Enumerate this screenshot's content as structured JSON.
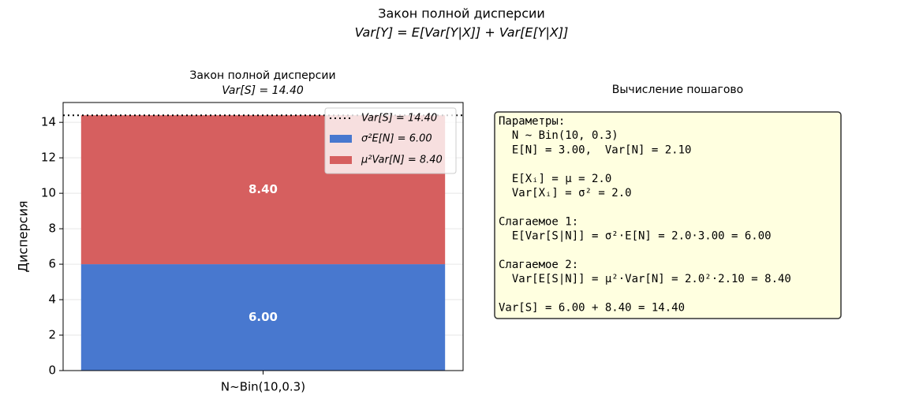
{
  "chart_data": {
    "type": "stacked-bar",
    "title": "Закон полной дисперсии",
    "formula": "Var[Y] = E[Var[Y|X]] + Var[E[Y|X]]",
    "axes_title": "Закон полной дисперсии",
    "axes_subtitle": "Var[S] = 14.40",
    "ylabel": "Дисперсия",
    "categories": [
      "N~Bin(10,0.3)"
    ],
    "series": [
      {
        "name": "σ²E[N] = 6.00",
        "color": "#4878cf",
        "values": [
          6.0
        ],
        "value_labels": [
          "6.00"
        ]
      },
      {
        "name": "μ²Var[N] = 8.40",
        "color": "#d65f5f",
        "values": [
          8.4
        ],
        "value_labels": [
          "8.40"
        ]
      }
    ],
    "reference_line": {
      "value": 14.4,
      "label": "Var[S] = 14.40",
      "color": "#000000"
    },
    "ylim": [
      0,
      15.12
    ],
    "yticks": [
      0,
      2,
      4,
      6,
      8,
      10,
      12,
      14
    ],
    "grid": true,
    "legend": "upper right"
  },
  "panel": {
    "title": "Вычисление пошагово",
    "blocks": [
      [
        "Параметры:",
        "  N ~ Bin(10, 0.3)",
        "  E[N] = 3.00,  Var[N] = 2.10"
      ],
      [
        "  E[Xᵢ] = μ = 2.0",
        "  Var[Xᵢ] = σ² = 2.0"
      ],
      [
        "Слагаемое 1:",
        "  E[Var[S|N]] = σ²·E[N] = 2.0·3.00 = 6.00"
      ],
      [
        "Слагаемое 2:",
        "  Var[E[S|N]] = μ²·Var[N] = 2.0²·2.10 = 8.40"
      ],
      [
        "Var[S] = 6.00 + 8.40 = 14.40"
      ]
    ]
  }
}
